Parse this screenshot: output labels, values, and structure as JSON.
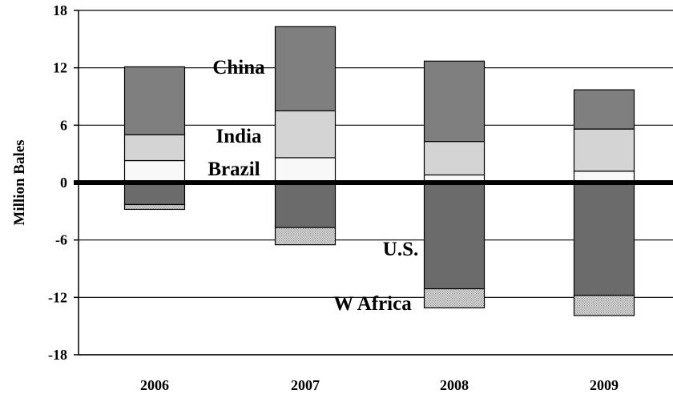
{
  "chart_data": {
    "type": "bar",
    "stacked": true,
    "categories": [
      "2006",
      "2007",
      "2008",
      "2009"
    ],
    "ylabel": "Million Bales",
    "ylim": [
      -18,
      18
    ],
    "yticks": [
      "18",
      "12",
      "6",
      "0",
      "-6",
      "-12",
      "-18"
    ],
    "grid": true,
    "legend": "none",
    "series": [
      {
        "name": "Brazil",
        "values": [
          2.3,
          2.6,
          0.8,
          1.2
        ],
        "color": "#f8f8f8"
      },
      {
        "name": "India",
        "values": [
          2.7,
          4.9,
          3.5,
          4.4
        ],
        "color": "#d4d4d4"
      },
      {
        "name": "China",
        "values": [
          7.1,
          8.8,
          8.4,
          4.1
        ],
        "color": "#7f7f7f"
      },
      {
        "name": "U.S.",
        "values": [
          -2.3,
          -4.7,
          -11.1,
          -11.8
        ],
        "color": "#6b6b6b"
      },
      {
        "name": "W Africa",
        "values": [
          -0.5,
          -1.8,
          -2.0,
          -2.1
        ],
        "color": "#c4c4c4",
        "pattern": "dots"
      }
    ],
    "annotations": [
      "China",
      "India",
      "Brazil",
      "U.S.",
      "W Africa"
    ]
  }
}
